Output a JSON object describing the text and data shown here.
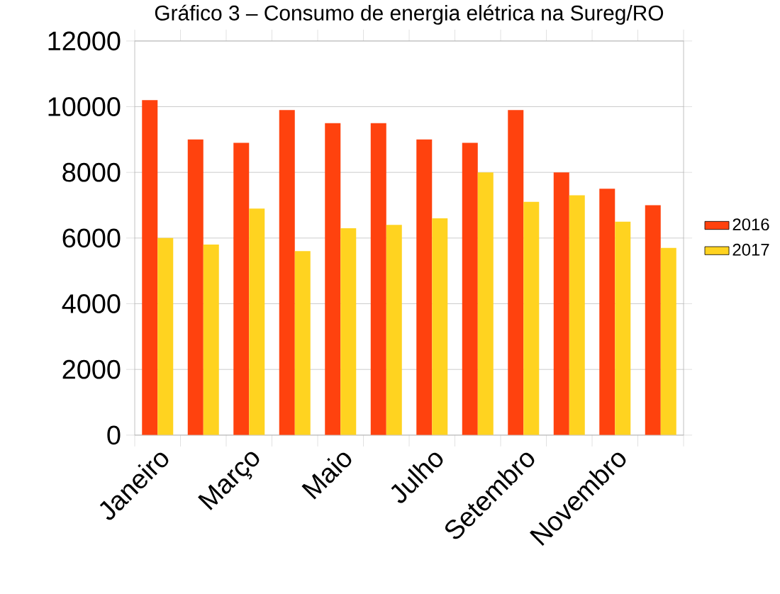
{
  "chart_data": {
    "type": "bar",
    "title": "Gráfico 3 – Consumo de energia elétrica na Sureg/RO",
    "categories": [
      "Janeiro",
      null,
      "Março",
      null,
      "Maio",
      null,
      "Julho",
      null,
      "Setembro",
      null,
      "Novembro",
      null
    ],
    "series": [
      {
        "name": "2016",
        "color": "#ff420e",
        "values": [
          10200,
          9000,
          8900,
          9900,
          9500,
          9500,
          9000,
          8900,
          9900,
          8000,
          7500,
          7000
        ]
      },
      {
        "name": "2017",
        "color": "#ffd320",
        "values": [
          6000,
          5800,
          6900,
          5600,
          6300,
          6400,
          6600,
          8000,
          7100,
          7300,
          6500,
          5700
        ]
      }
    ],
    "ylim": [
      0,
      12000
    ],
    "yticks": [
      0,
      2000,
      4000,
      6000,
      8000,
      10000,
      12000
    ],
    "grid": "y",
    "legend": "right"
  }
}
